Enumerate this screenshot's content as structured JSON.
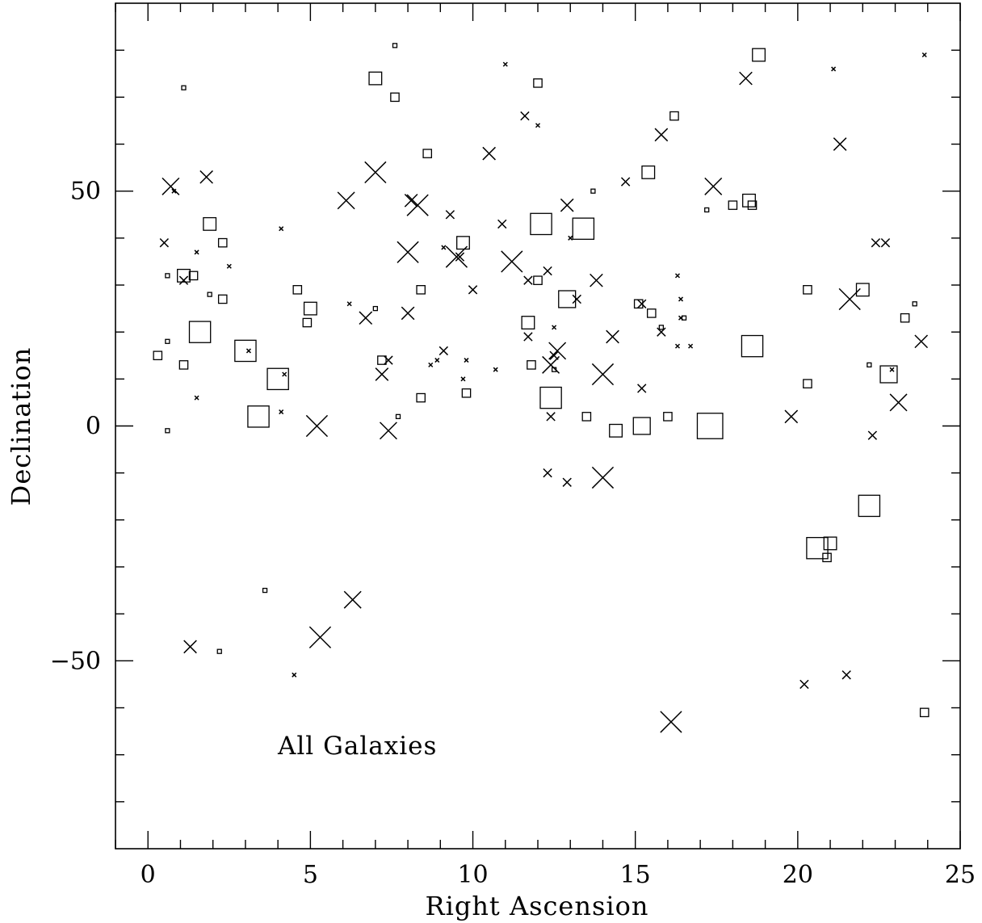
{
  "chart_data": {
    "type": "scatter",
    "title": "",
    "xlabel": "Right Ascension",
    "ylabel": "Declination",
    "xlim": [
      -1,
      25
    ],
    "ylim": [
      -90,
      90
    ],
    "xticks": [
      0,
      5,
      10,
      15,
      20,
      25
    ],
    "xtick_labels": [
      "0",
      "5",
      "10",
      "15",
      "20",
      "25"
    ],
    "yticks": [
      -50,
      0,
      50
    ],
    "ytick_labels": [
      "−50",
      "0",
      "50"
    ],
    "grid": false,
    "annotation": "All Galaxies",
    "series": [
      {
        "marker": "square",
        "points": [
          [
            7.6,
            81,
            1
          ],
          [
            1.1,
            72,
            1
          ],
          [
            18.8,
            79,
            3
          ],
          [
            7.0,
            74,
            3
          ],
          [
            7.6,
            70,
            2
          ],
          [
            12.0,
            73,
            2
          ],
          [
            16.2,
            66,
            2
          ],
          [
            8.6,
            58,
            2
          ],
          [
            15.4,
            54,
            3
          ],
          [
            13.7,
            50,
            1
          ],
          [
            18.5,
            48,
            3
          ],
          [
            18.6,
            47,
            2
          ],
          [
            18.0,
            47,
            2
          ],
          [
            17.2,
            46,
            1
          ],
          [
            1.9,
            43,
            3
          ],
          [
            12.1,
            43,
            5
          ],
          [
            13.4,
            42,
            5
          ],
          [
            9.7,
            39,
            3
          ],
          [
            2.3,
            39,
            2
          ],
          [
            0.6,
            32,
            1
          ],
          [
            1.1,
            32,
            3
          ],
          [
            1.4,
            32,
            2
          ],
          [
            12.0,
            31,
            2
          ],
          [
            4.6,
            29,
            2
          ],
          [
            8.4,
            29,
            2
          ],
          [
            20.3,
            29,
            2
          ],
          [
            22.0,
            29,
            3
          ],
          [
            1.9,
            28,
            1
          ],
          [
            2.3,
            27,
            2
          ],
          [
            12.9,
            27,
            4
          ],
          [
            15.1,
            26,
            2
          ],
          [
            23.6,
            26,
            1
          ],
          [
            5.0,
            25,
            3
          ],
          [
            7.0,
            25,
            1
          ],
          [
            15.5,
            24,
            2
          ],
          [
            23.3,
            23,
            2
          ],
          [
            16.5,
            23,
            1
          ],
          [
            4.9,
            22,
            2
          ],
          [
            11.7,
            22,
            3
          ],
          [
            15.8,
            21,
            1
          ],
          [
            1.6,
            20,
            5
          ],
          [
            0.6,
            18,
            1
          ],
          [
            18.6,
            17,
            5
          ],
          [
            3.0,
            16,
            5
          ],
          [
            0.3,
            15,
            2
          ],
          [
            7.2,
            14,
            2
          ],
          [
            1.1,
            13,
            2
          ],
          [
            11.8,
            13,
            2
          ],
          [
            22.2,
            13,
            1
          ],
          [
            12.5,
            12,
            1
          ],
          [
            22.8,
            11,
            4
          ],
          [
            4.0,
            10,
            5
          ],
          [
            20.3,
            9,
            2
          ],
          [
            9.8,
            7,
            2
          ],
          [
            12.4,
            6,
            5
          ],
          [
            8.4,
            6,
            2
          ],
          [
            3.4,
            2,
            5
          ],
          [
            7.7,
            2,
            1
          ],
          [
            13.5,
            2,
            2
          ],
          [
            16.0,
            2,
            2
          ],
          [
            0.6,
            -1,
            1
          ],
          [
            14.4,
            -1,
            3
          ],
          [
            15.2,
            0,
            4
          ],
          [
            17.3,
            0,
            6
          ],
          [
            22.2,
            -17,
            5
          ],
          [
            20.6,
            -26,
            5
          ],
          [
            21.0,
            -25,
            3
          ],
          [
            20.9,
            -28,
            2
          ],
          [
            3.6,
            -35,
            1
          ],
          [
            2.2,
            -48,
            1
          ],
          [
            23.9,
            -61,
            2
          ]
        ]
      },
      {
        "marker": "cross",
        "points": [
          [
            11.0,
            77,
            1
          ],
          [
            21.1,
            76,
            1
          ],
          [
            23.9,
            79,
            1
          ],
          [
            18.4,
            74,
            3
          ],
          [
            11.6,
            66,
            2
          ],
          [
            12.0,
            64,
            1
          ],
          [
            15.8,
            62,
            3
          ],
          [
            21.3,
            60,
            3
          ],
          [
            10.5,
            58,
            3
          ],
          [
            7.0,
            54,
            5
          ],
          [
            1.8,
            53,
            3
          ],
          [
            14.7,
            52,
            2
          ],
          [
            0.7,
            51,
            4
          ],
          [
            0.8,
            50,
            1
          ],
          [
            17.4,
            51,
            4
          ],
          [
            6.1,
            48,
            4
          ],
          [
            8.1,
            48,
            3
          ],
          [
            8.3,
            47,
            5
          ],
          [
            12.9,
            47,
            3
          ],
          [
            9.3,
            45,
            2
          ],
          [
            10.9,
            43,
            2
          ],
          [
            4.1,
            42,
            1
          ],
          [
            13.0,
            40,
            1
          ],
          [
            0.5,
            39,
            2
          ],
          [
            22.4,
            39,
            2
          ],
          [
            22.7,
            39,
            2
          ],
          [
            9.1,
            38,
            1
          ],
          [
            8.0,
            37,
            5
          ],
          [
            9.5,
            36,
            5
          ],
          [
            9.6,
            36,
            2
          ],
          [
            1.5,
            37,
            1
          ],
          [
            11.2,
            35,
            5
          ],
          [
            2.5,
            34,
            1
          ],
          [
            12.3,
            33,
            2
          ],
          [
            16.3,
            32,
            1
          ],
          [
            1.1,
            31,
            2
          ],
          [
            11.7,
            31,
            2
          ],
          [
            13.8,
            31,
            3
          ],
          [
            10.0,
            29,
            2
          ],
          [
            21.6,
            27,
            5
          ],
          [
            13.2,
            27,
            2
          ],
          [
            16.4,
            27,
            1
          ],
          [
            6.2,
            26,
            1
          ],
          [
            15.2,
            26,
            2
          ],
          [
            8.0,
            24,
            3
          ],
          [
            6.7,
            23,
            3
          ],
          [
            16.4,
            23,
            1
          ],
          [
            12.5,
            21,
            1
          ],
          [
            15.8,
            20,
            2
          ],
          [
            11.7,
            19,
            2
          ],
          [
            14.3,
            19,
            3
          ],
          [
            23.8,
            18,
            3
          ],
          [
            16.3,
            17,
            1
          ],
          [
            16.7,
            17,
            1
          ],
          [
            3.1,
            16,
            1
          ],
          [
            9.1,
            16,
            2
          ],
          [
            12.6,
            16,
            4
          ],
          [
            12.5,
            15,
            2
          ],
          [
            7.4,
            14,
            2
          ],
          [
            8.9,
            14,
            1
          ],
          [
            9.8,
            14,
            1
          ],
          [
            8.7,
            13,
            1
          ],
          [
            12.4,
            13,
            4
          ],
          [
            10.7,
            12,
            1
          ],
          [
            22.9,
            12,
            1
          ],
          [
            4.2,
            11,
            1
          ],
          [
            7.2,
            11,
            3
          ],
          [
            14.0,
            11,
            5
          ],
          [
            9.7,
            10,
            1
          ],
          [
            15.2,
            8,
            2
          ],
          [
            1.5,
            6,
            1
          ],
          [
            23.1,
            5,
            4
          ],
          [
            4.1,
            3,
            1
          ],
          [
            12.4,
            2,
            2
          ],
          [
            19.8,
            2,
            3
          ],
          [
            5.2,
            0,
            5
          ],
          [
            7.4,
            -1,
            4
          ],
          [
            22.3,
            -2,
            2
          ],
          [
            12.3,
            -10,
            2
          ],
          [
            12.9,
            -12,
            2
          ],
          [
            14.0,
            -11,
            5
          ],
          [
            6.3,
            -37,
            4
          ],
          [
            5.3,
            -45,
            5
          ],
          [
            1.3,
            -47,
            3
          ],
          [
            4.5,
            -53,
            1
          ],
          [
            21.5,
            -53,
            2
          ],
          [
            20.2,
            -55,
            2
          ],
          [
            16.1,
            -63,
            5
          ]
        ]
      }
    ]
  }
}
